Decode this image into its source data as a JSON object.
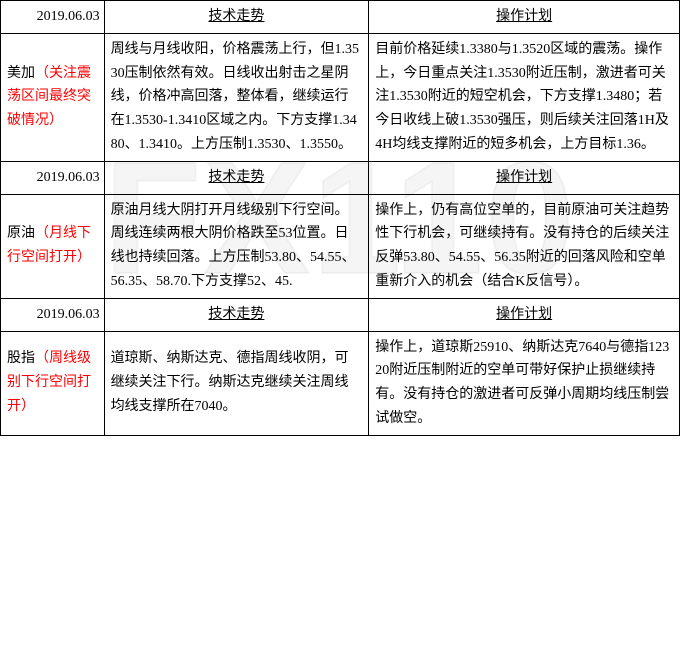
{
  "watermark": "FX110",
  "sections": [
    {
      "date": "2019.06.03",
      "trend_header": "技术走势",
      "plan_header": "操作计划",
      "name": "美加",
      "note": "（关注震荡区间最终突破情况）",
      "trend": "周线与月线收阳，价格震荡上行，但1.3530压制依然有效。日线收出射击之星阴线，价格冲高回落，整体看，继续运行在1.3530-1.3410区域之内。下方支撑1.3480、1.3410。上方压制1.3530、1.3550。",
      "plan": "目前价格延续1.3380与1.3520区域的震荡。操作上，今日重点关注1.3530附近压制，激进者可关注1.3530附近的短空机会，下方支撑1.3480；若今日收线上破1.3530强压，则后续关注回落1H及4H均线支撑附近的短多机会，上方目标1.36。"
    },
    {
      "date": "2019.06.03",
      "trend_header": "技术走势",
      "plan_header": "操作计划",
      "name": "原油",
      "note": "（月线下行空间打开）",
      "trend": "原油月线大阴打开月线级别下行空间。周线连续两根大阴价格跌至53位置。日线也持续回落。上方压制53.80、54.55、56.35、58.70.下方支撑52、45.",
      "plan": "操作上，仍有高位空单的，目前原油可关注趋势性下行机会，可继续持有。没有持仓的后续关注反弹53.80、54.55、56.35附近的回落风险和空单重新介入的机会（结合K反信号）。"
    },
    {
      "date": "2019.06.03",
      "trend_header": "技术走势",
      "plan_header": "操作计划",
      "name": "股指",
      "note": "（周线级别下行空间打开）",
      "trend": "道琼斯、纳斯达克、德指周线收阴，可继续关注下行。纳斯达克继续关注周线均线支撑所在7040。",
      "plan": "操作上，道琼斯25910、纳斯达克7640与德指12320附近压制附近的空单可带好保护止损继续持有。没有持仓的激进者可反弹小周期均线压制尝试做空。"
    }
  ]
}
